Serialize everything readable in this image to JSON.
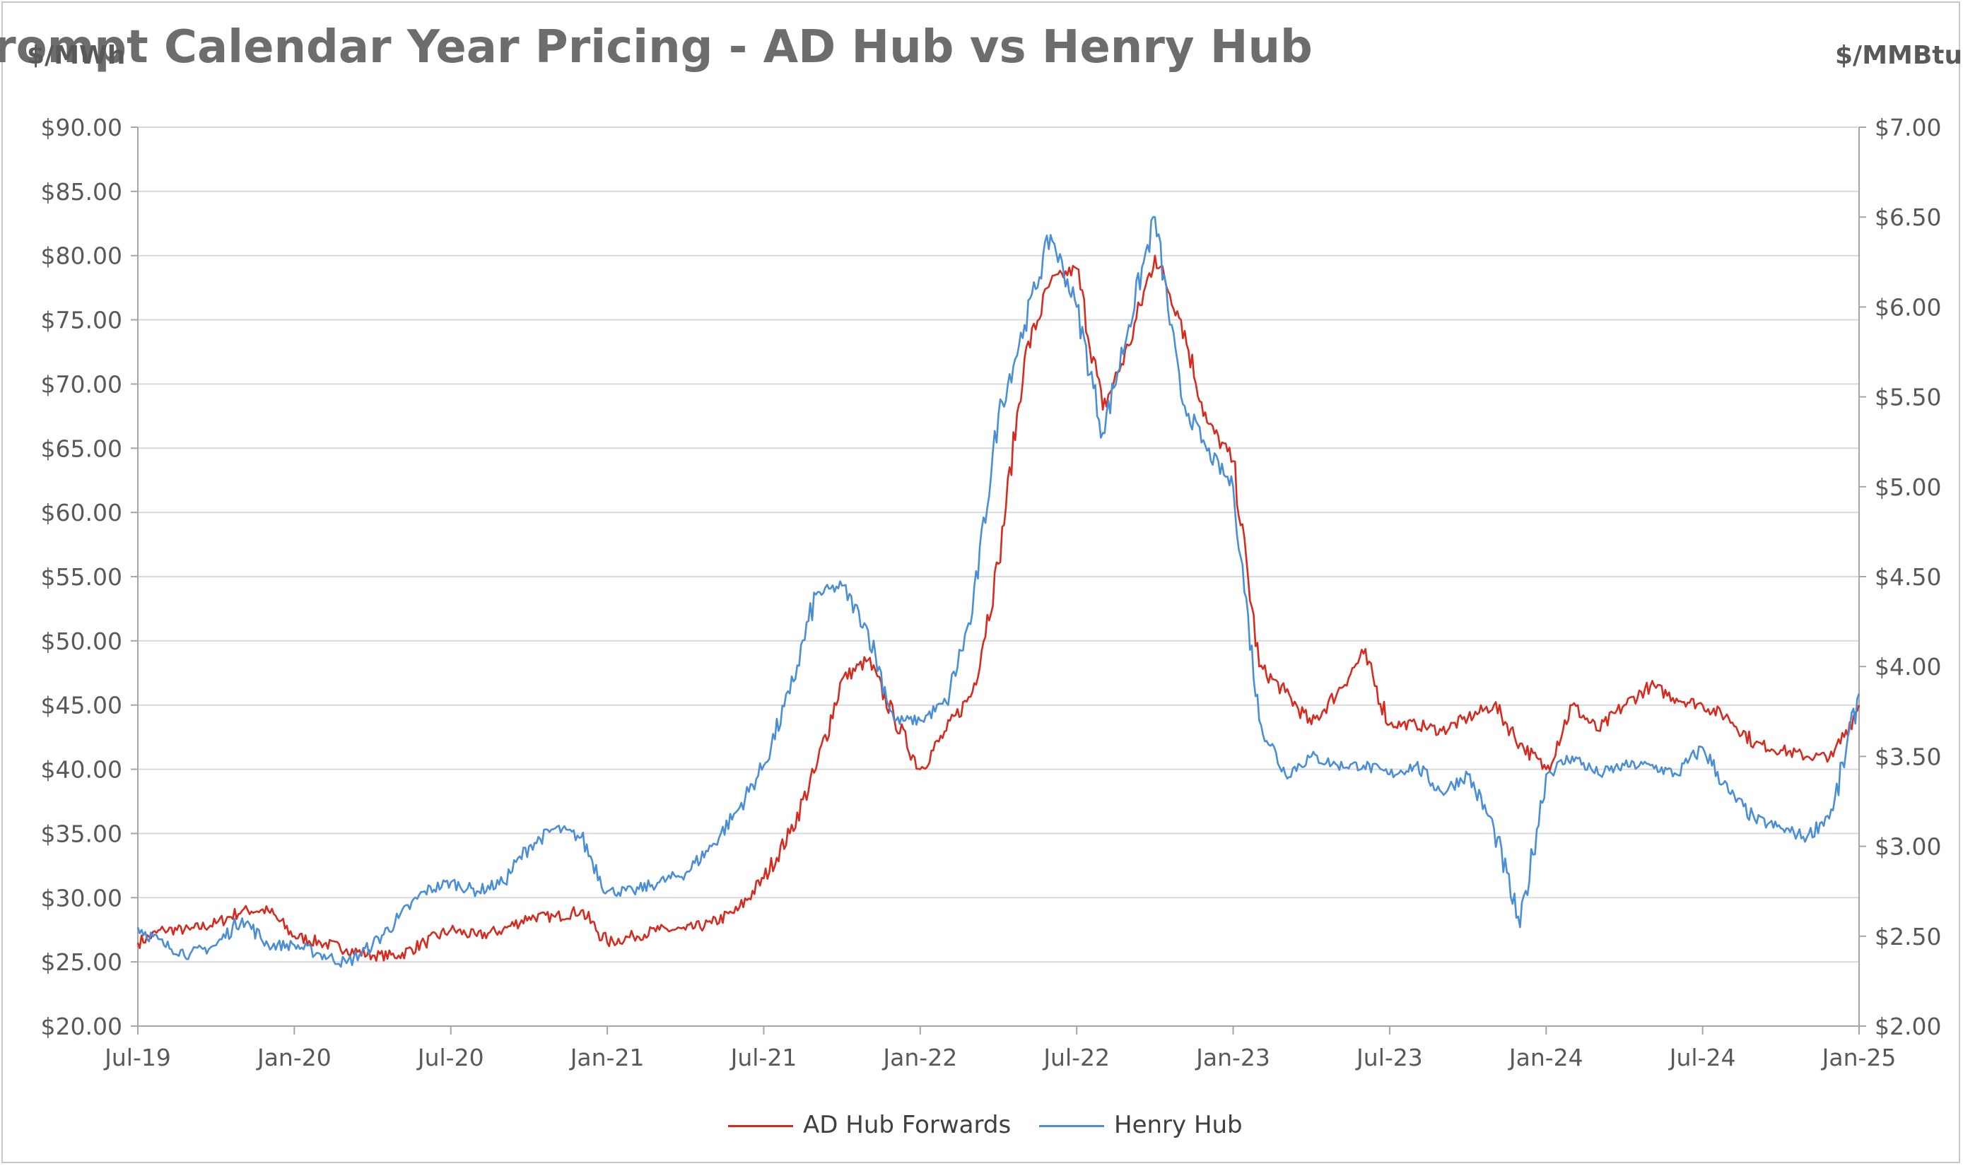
{
  "chart_data": {
    "type": "line",
    "title": "Prompt Calendar Year Pricing - AD Hub vs Henry Hub",
    "ylabel_left": "$/MWh",
    "ylabel_right": "$/MMBtu",
    "ylim_left": [
      20,
      90
    ],
    "ylim_right": [
      2.0,
      7.0
    ],
    "y_ticks_left": [
      "$20.00",
      "$25.00",
      "$30.00",
      "$35.00",
      "$40.00",
      "$45.00",
      "$50.00",
      "$55.00",
      "$60.00",
      "$65.00",
      "$70.00",
      "$75.00",
      "$80.00",
      "$85.00",
      "$90.00"
    ],
    "y_ticks_right": [
      "$2.00",
      "$2.50",
      "$3.00",
      "$3.50",
      "$4.00",
      "$4.50",
      "$5.00",
      "$5.50",
      "$6.00",
      "$6.50",
      "$7.00"
    ],
    "x_ticks": [
      "Jul-19",
      "Jan-20",
      "Jul-20",
      "Jan-21",
      "Jul-21",
      "Jan-22",
      "Jul-22",
      "Jan-23",
      "Jul-23",
      "Jan-24",
      "Jul-24",
      "Jan-25"
    ],
    "xlim": [
      "Jul-19",
      "Jan-25"
    ],
    "grid": true,
    "legend_position": "bottom-center",
    "series": [
      {
        "name": "AD Hub Forwards",
        "axis": "left",
        "color": "#d62b1f",
        "x": [
          "Jul-19",
          "Aug-19",
          "Sep-19",
          "Oct-19",
          "Nov-19",
          "Dec-19",
          "Jan-20",
          "Feb-20",
          "Mar-20",
          "Apr-20",
          "May-20",
          "Jun-20",
          "Jul-20",
          "Aug-20",
          "Sep-20",
          "Oct-20",
          "Nov-20",
          "Dec-20",
          "Jan-21",
          "Feb-21",
          "Mar-21",
          "Apr-21",
          "May-21",
          "Jun-21",
          "Jul-21",
          "Aug-21",
          "Sep-21",
          "Oct-21",
          "Nov-21",
          "Dec-21",
          "Jan-22",
          "Feb-22",
          "Mar-22",
          "Apr-22",
          "May-22",
          "Jun-22",
          "Jul-22",
          "Aug-22",
          "Sep-22",
          "Oct-22",
          "Nov-22",
          "Dec-22",
          "Jan-23",
          "Feb-23",
          "Mar-23",
          "Apr-23",
          "May-23",
          "Jun-23",
          "Jul-23",
          "Aug-23",
          "Sep-23",
          "Oct-23",
          "Nov-23",
          "Dec-23",
          "Jan-24",
          "Feb-24",
          "Mar-24",
          "Apr-24",
          "May-24",
          "Jun-24",
          "Jul-24",
          "Aug-24",
          "Sep-24",
          "Oct-24",
          "Nov-24",
          "Dec-24",
          "Jan-25"
        ],
        "values": [
          26.5,
          27.5,
          27.5,
          28.0,
          29.0,
          29.0,
          27.0,
          26.5,
          26.0,
          25.5,
          25.5,
          26.5,
          27.5,
          27.0,
          27.5,
          28.5,
          28.5,
          29.0,
          26.5,
          27.0,
          27.5,
          27.5,
          28.0,
          29.0,
          31.5,
          35.0,
          40.0,
          47.0,
          48.5,
          44.0,
          40.0,
          43.0,
          46.0,
          56.0,
          72.0,
          78.0,
          79.0,
          68.0,
          73.0,
          80.0,
          75.0,
          67.0,
          64.0,
          48.0,
          46.0,
          43.5,
          46.0,
          49.0,
          43.5,
          43.5,
          43.0,
          44.0,
          45.0,
          42.0,
          40.0,
          45.0,
          43.0,
          45.0,
          46.5,
          45.5,
          45.0,
          44.0,
          42.0,
          41.5,
          41.0,
          41.0,
          45.0
        ]
      },
      {
        "name": "Henry Hub",
        "axis": "right",
        "color": "#4a8fd6",
        "x": [
          "Jul-19",
          "Aug-19",
          "Sep-19",
          "Oct-19",
          "Nov-19",
          "Dec-19",
          "Jan-20",
          "Feb-20",
          "Mar-20",
          "Apr-20",
          "May-20",
          "Jun-20",
          "Jul-20",
          "Aug-20",
          "Sep-20",
          "Oct-20",
          "Nov-20",
          "Dec-20",
          "Jan-21",
          "Feb-21",
          "Mar-21",
          "Apr-21",
          "May-21",
          "Jun-21",
          "Jul-21",
          "Aug-21",
          "Sep-21",
          "Oct-21",
          "Nov-21",
          "Dec-21",
          "Jan-22",
          "Feb-22",
          "Mar-22",
          "Apr-22",
          "May-22",
          "Jun-22",
          "Jul-22",
          "Aug-22",
          "Sep-22",
          "Oct-22",
          "Nov-22",
          "Dec-22",
          "Jan-23",
          "Feb-23",
          "Mar-23",
          "Apr-23",
          "May-23",
          "Jun-23",
          "Jul-23",
          "Aug-23",
          "Sep-23",
          "Oct-23",
          "Nov-23",
          "Dec-23",
          "Jan-24",
          "Feb-24",
          "Mar-24",
          "Apr-24",
          "May-24",
          "Jun-24",
          "Jul-24",
          "Aug-24",
          "Sep-24",
          "Oct-24",
          "Nov-24",
          "Dec-24",
          "Jan-25"
        ],
        "values": [
          2.55,
          2.45,
          2.4,
          2.45,
          2.6,
          2.45,
          2.45,
          2.4,
          2.35,
          2.45,
          2.6,
          2.75,
          2.8,
          2.75,
          2.8,
          3.0,
          3.1,
          3.05,
          2.75,
          2.75,
          2.8,
          2.85,
          3.0,
          3.2,
          3.45,
          3.85,
          4.4,
          4.45,
          4.2,
          3.7,
          3.7,
          3.8,
          4.3,
          5.4,
          5.9,
          6.4,
          6.0,
          5.3,
          5.9,
          6.5,
          5.5,
          5.2,
          5.0,
          3.7,
          3.4,
          3.5,
          3.45,
          3.45,
          3.4,
          3.45,
          3.3,
          3.4,
          3.1,
          2.55,
          3.4,
          3.5,
          3.4,
          3.45,
          3.45,
          3.4,
          3.55,
          3.3,
          3.15,
          3.1,
          3.05,
          3.2,
          3.85
        ]
      }
    ]
  }
}
